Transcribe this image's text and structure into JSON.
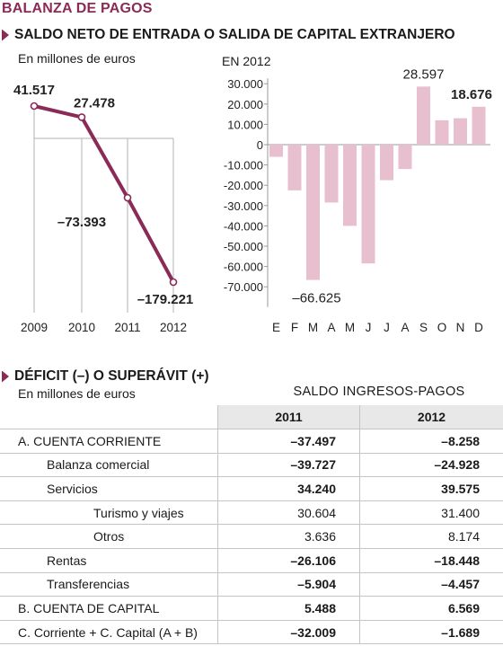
{
  "title": "BALANZA DE PAGOS",
  "section1": {
    "heading": "SALDO NETO DE ENTRADA O SALIDA DE CAPITAL EXTRANJERO",
    "units_left": "En millones de euros",
    "label_right": "EN 2012"
  },
  "colors": {
    "accent": "#8a2a57",
    "bar": "#e8bfcf",
    "line": "#8a2a57"
  },
  "chart_data": [
    {
      "type": "line",
      "x": [
        "2009",
        "2010",
        "2011",
        "2012"
      ],
      "values": [
        41517,
        27478,
        -73393,
        -179221
      ],
      "data_labels": [
        "41.517",
        "27.478",
        "–73.393",
        "–179.221"
      ],
      "title": "",
      "xlabel": "",
      "ylabel": "En millones de euros",
      "grid": false
    },
    {
      "type": "bar",
      "categories": [
        "E",
        "F",
        "M",
        "A",
        "M",
        "J",
        "J",
        "A",
        "S",
        "O",
        "N",
        "D"
      ],
      "values": [
        -6000,
        -22500,
        -66625,
        -28500,
        -40000,
        -58500,
        -17500,
        -12000,
        28597,
        12000,
        13000,
        18676
      ],
      "labeled": {
        "M": "–66.625",
        "S": "28.597",
        "D": "18.676"
      },
      "yticks": [
        "30.000",
        "20.000",
        "10.000",
        "0",
        "-10.000",
        "-20.000",
        "-30.000",
        "-40.000",
        "-50.000",
        "-60.000",
        "-70.000"
      ],
      "ylim": [
        -80000,
        30000
      ],
      "title": "EN 2012",
      "grid": false
    }
  ],
  "section2": {
    "heading": "DÉFICIT (–) O SUPERÁVIT (+)",
    "units": "En millones de euros",
    "table_title": "SALDO INGRESOS-PAGOS",
    "columns": [
      "2011",
      "2012"
    ],
    "rows": [
      {
        "label": "A. CUENTA CORRIENTE",
        "v2011": "–37.497",
        "v2012": "–8.258"
      },
      {
        "label": "Balanza comercial",
        "v2011": "–39.727",
        "v2012": "–24.928"
      },
      {
        "label": "Servicios",
        "v2011": "34.240",
        "v2012": "39.575"
      },
      {
        "label": "Turismo y viajes",
        "v2011": "30.604",
        "v2012": "31.400"
      },
      {
        "label": "Otros",
        "v2011": "3.636",
        "v2012": "8.174"
      },
      {
        "label": "Rentas",
        "v2011": "–26.106",
        "v2012": "–18.448"
      },
      {
        "label": "Transferencias",
        "v2011": "–5.904",
        "v2012": "–4.457"
      },
      {
        "label": "B. CUENTA DE CAPITAL",
        "v2011": "5.488",
        "v2012": "6.569"
      },
      {
        "label": "C. Corriente +  C. Capital (A + B)",
        "v2011": "–32.009",
        "v2012": "–1.689"
      }
    ]
  }
}
